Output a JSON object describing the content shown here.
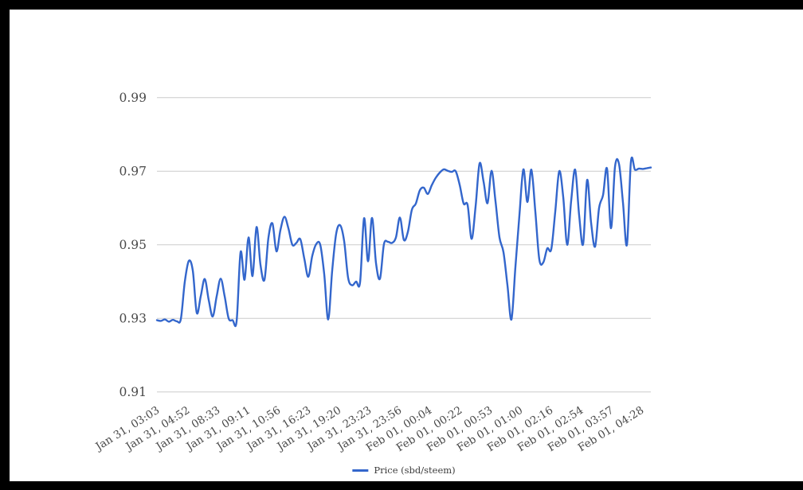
{
  "colors": {
    "line": "#3366cc",
    "gridline": "#cccccc",
    "axis_label": "#494949",
    "background": "#ffffff",
    "frame": "#000000"
  },
  "legend": {
    "label": "Price (sbd/steem)"
  },
  "chart_data": {
    "type": "line",
    "title": "",
    "xlabel": "",
    "ylabel": "",
    "ylim": [
      0.91,
      0.99
    ],
    "grid": "horizontal",
    "legend_position": "bottom-center",
    "y_tick_labels": [
      "0.99",
      "0.97",
      "0.95",
      "0.93",
      "0.91"
    ],
    "y_tick_values": [
      0.99,
      0.97,
      0.95,
      0.93,
      0.91
    ],
    "x_tick_labels": [
      "Jan 31, 03:03",
      "Jan 31, 04:52",
      "Jan 31, 08:33",
      "Jan 31, 09:11",
      "Jan 31, 10:56",
      "Jan 31, 16:23",
      "Jan 31, 19:20",
      "Jan 31, 23:23",
      "Jan 31, 23:56",
      "Feb 01, 00:04",
      "Feb 01, 00:22",
      "Feb 01, 00:53",
      "Feb 01, 01:00",
      "Feb 01, 02:16",
      "Feb 01, 02:54",
      "Feb 01, 03:57",
      "Feb 01, 04:28"
    ],
    "series": [
      {
        "name": "Price (sbd/steem)",
        "sampling": "evenly spaced across time axis, values in sbd/steem",
        "values": [
          0.9295,
          0.9293,
          0.9297,
          0.9291,
          0.9296,
          0.9292,
          0.9298,
          0.94,
          0.9456,
          0.943,
          0.9315,
          0.936,
          0.9407,
          0.935,
          0.9305,
          0.936,
          0.9408,
          0.936,
          0.93,
          0.9295,
          0.9292,
          0.948,
          0.9405,
          0.952,
          0.9415,
          0.9548,
          0.9445,
          0.9405,
          0.952,
          0.9558,
          0.9482,
          0.954,
          0.9576,
          0.9545,
          0.95,
          0.9505,
          0.9515,
          0.9462,
          0.9413,
          0.947,
          0.9502,
          0.95,
          0.942,
          0.9297,
          0.943,
          0.953,
          0.9553,
          0.951,
          0.941,
          0.939,
          0.94,
          0.9398,
          0.9572,
          0.9455,
          0.9573,
          0.945,
          0.9408,
          0.9502,
          0.9508,
          0.9505,
          0.952,
          0.9574,
          0.9513,
          0.9535,
          0.9595,
          0.9612,
          0.9648,
          0.9655,
          0.9638,
          0.9662,
          0.9682,
          0.9696,
          0.9705,
          0.9701,
          0.9698,
          0.97,
          0.9663,
          0.9612,
          0.9608,
          0.9516,
          0.9604,
          0.9721,
          0.9672,
          0.9613,
          0.9701,
          0.9618,
          0.952,
          0.948,
          0.939,
          0.9297,
          0.944,
          0.958,
          0.9705,
          0.9616,
          0.9704,
          0.959,
          0.946,
          0.9452,
          0.949,
          0.9488,
          0.959,
          0.97,
          0.963,
          0.95,
          0.962,
          0.9704,
          0.958,
          0.9502,
          0.9676,
          0.956,
          0.9495,
          0.96,
          0.9635,
          0.9707,
          0.9545,
          0.9712,
          0.972,
          0.9615,
          0.95,
          0.9726,
          0.9704,
          0.9707,
          0.9706,
          0.9708,
          0.971
        ]
      }
    ]
  }
}
